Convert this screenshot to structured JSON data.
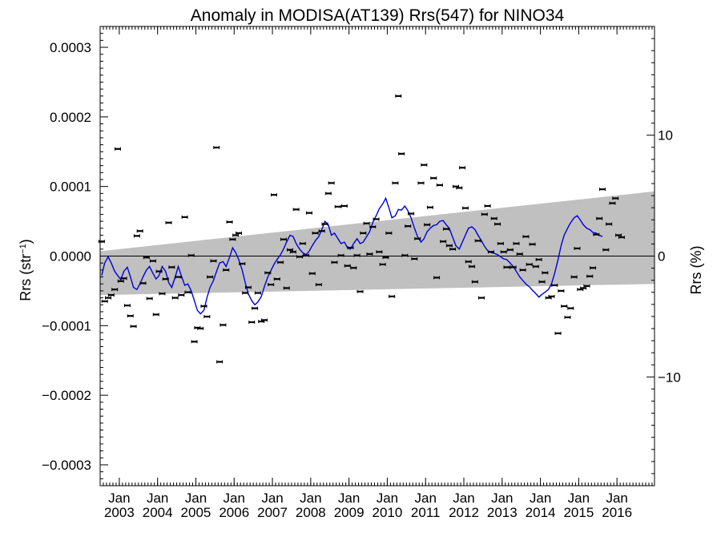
{
  "chart_data": {
    "type": "scatter",
    "title": "Anomaly in MODISA(AT139) Rrs(547) for NINO34",
    "ylabel_base": "Rrs (str",
    "ylabel_sup": "−1",
    "ylabel_end": ")",
    "y2label": "Rrs (%)",
    "ylim": [
      -0.00033,
      0.00033
    ],
    "y2lim": [
      -19,
      19
    ],
    "xlim": [
      2002.5,
      2016.98
    ],
    "x_ticks": [
      {
        "x": 2003.0,
        "top": "Jan",
        "bottom": "2003"
      },
      {
        "x": 2004.0,
        "top": "Jan",
        "bottom": "2004"
      },
      {
        "x": 2005.0,
        "top": "Jan",
        "bottom": "2005"
      },
      {
        "x": 2006.0,
        "top": "Jan",
        "bottom": "2006"
      },
      {
        "x": 2007.0,
        "top": "Jan",
        "bottom": "2007"
      },
      {
        "x": 2008.0,
        "top": "Jan",
        "bottom": "2008"
      },
      {
        "x": 2009.0,
        "top": "Jan",
        "bottom": "2009"
      },
      {
        "x": 2010.0,
        "top": "Jan",
        "bottom": "2010"
      },
      {
        "x": 2011.0,
        "top": "Jan",
        "bottom": "2011"
      },
      {
        "x": 2012.0,
        "top": "Jan",
        "bottom": "2012"
      },
      {
        "x": 2013.0,
        "top": "Jan",
        "bottom": "2013"
      },
      {
        "x": 2014.0,
        "top": "Jan",
        "bottom": "2014"
      },
      {
        "x": 2015.0,
        "top": "Jan",
        "bottom": "2015"
      },
      {
        "x": 2016.0,
        "top": "Jan",
        "bottom": "2016"
      }
    ],
    "y_ticks": [
      {
        "v": 0.0003,
        "label": "0.0003"
      },
      {
        "v": 0.0002,
        "label": "0.0002"
      },
      {
        "v": 0.0001,
        "label": "0.0001"
      },
      {
        "v": 0.0,
        "label": "0.0000"
      },
      {
        "v": -0.0001,
        "label": "−0.0001"
      },
      {
        "v": -0.0002,
        "label": "−0.0002"
      },
      {
        "v": -0.0003,
        "label": "−0.0003"
      }
    ],
    "y2_ticks": [
      {
        "v": 10,
        "label": "10"
      },
      {
        "v": 0,
        "label": "0"
      },
      {
        "v": -10,
        "label": "−10"
      }
    ],
    "band": {
      "x": [
        2002.5,
        2016.98
      ],
      "upper": [
        7e-06,
        9.3e-05
      ],
      "lower": [
        -5.6e-05,
        -4e-05
      ]
    },
    "colors": {
      "points": "#000000",
      "line": "#0000dd",
      "band": "#c0c0c0"
    },
    "points": [
      [
        2002.54,
        2.1e-05
      ],
      [
        2002.62,
        -6.5e-05
      ],
      [
        2002.71,
        -6e-05
      ],
      [
        2002.79,
        -5.6e-05
      ],
      [
        2002.88,
        -4.8e-05
      ],
      [
        2002.96,
        0.000154
      ],
      [
        2003.04,
        -3.6e-05
      ],
      [
        2003.12,
        -3.2e-05
      ],
      [
        2003.21,
        -7.1e-05
      ],
      [
        2003.29,
        -8.6e-05
      ],
      [
        2003.37,
        -0.000101
      ],
      [
        2003.46,
        2.9e-05
      ],
      [
        2003.54,
        3.6e-05
      ],
      [
        2003.62,
        -3.9e-05
      ],
      [
        2003.71,
        -2e-06
      ],
      [
        2003.79,
        -6.1e-05
      ],
      [
        2003.88,
        -7e-06
      ],
      [
        2003.96,
        -8.4e-05
      ],
      [
        2004.04,
        -2.2e-05
      ],
      [
        2004.12,
        -5.4e-05
      ],
      [
        2004.21,
        -3.3e-05
      ],
      [
        2004.29,
        4.8e-05
      ],
      [
        2004.37,
        -1.6e-05
      ],
      [
        2004.46,
        -6e-05
      ],
      [
        2004.54,
        -3e-05
      ],
      [
        2004.62,
        -5.6e-05
      ],
      [
        2004.71,
        5.6e-05
      ],
      [
        2004.79,
        -5.2e-05
      ],
      [
        2004.88,
        1e-06
      ],
      [
        2004.96,
        -0.000123
      ],
      [
        2005.04,
        -0.000103
      ],
      [
        2005.12,
        -0.000104
      ],
      [
        2005.21,
        -7.2e-05
      ],
      [
        2005.29,
        -8.7e-05
      ],
      [
        2005.37,
        -3e-05
      ],
      [
        2005.46,
        -7e-06
      ],
      [
        2005.54,
        0.000156
      ],
      [
        2005.62,
        -0.000152
      ],
      [
        2005.71,
        -9.9e-05
      ],
      [
        2005.79,
        -2e-05
      ],
      [
        2005.88,
        4.9e-05
      ],
      [
        2005.96,
        2.4e-05
      ],
      [
        2006.04,
        3e-05
      ],
      [
        2006.12,
        3.3e-05
      ],
      [
        2006.21,
        -1.1e-05
      ],
      [
        2006.29,
        -5.3e-05
      ],
      [
        2006.37,
        -4.5e-05
      ],
      [
        2006.46,
        -9.5e-05
      ],
      [
        2006.54,
        -7.5e-05
      ],
      [
        2006.62,
        -5.3e-05
      ],
      [
        2006.71,
        -9.4e-05
      ],
      [
        2006.79,
        -9.2e-05
      ],
      [
        2006.88,
        -2.4e-05
      ],
      [
        2006.96,
        -4.1e-05
      ],
      [
        2007.04,
        8.8e-05
      ],
      [
        2007.12,
        -3.3e-05
      ],
      [
        2007.21,
        -9e-06
      ],
      [
        2007.29,
        2.4e-05
      ],
      [
        2007.37,
        -4.6e-05
      ],
      [
        2007.46,
        9e-06
      ],
      [
        2007.54,
        6e-06
      ],
      [
        2007.62,
        6.7e-05
      ],
      [
        2007.71,
        -1e-06
      ],
      [
        2007.79,
        1.8e-05
      ],
      [
        2007.88,
        1e-06
      ],
      [
        2007.96,
        6.2e-05
      ],
      [
        2008.04,
        -2.5e-05
      ],
      [
        2008.12,
        3.3e-05
      ],
      [
        2008.21,
        -4.1e-05
      ],
      [
        2008.29,
        3.6e-05
      ],
      [
        2008.37,
        4.6e-05
      ],
      [
        2008.46,
        9e-05
      ],
      [
        2008.54,
        0.000105
      ],
      [
        2008.62,
        -9e-06
      ],
      [
        2008.71,
        7.1e-05
      ],
      [
        2008.79,
        1e-06
      ],
      [
        2008.88,
        7.2e-05
      ],
      [
        2008.96,
        -1.4e-05
      ],
      [
        2009.04,
        1.2e-05
      ],
      [
        2009.12,
        -1.7e-05
      ],
      [
        2009.21,
        1e-06
      ],
      [
        2009.29,
        -5.1e-05
      ],
      [
        2009.37,
        3.3e-05
      ],
      [
        2009.46,
        4.7e-05
      ],
      [
        2009.54,
        3e-06
      ],
      [
        2009.62,
        4.2e-05
      ],
      [
        2009.71,
        5.3e-05
      ],
      [
        2009.79,
        6e-06
      ],
      [
        2009.88,
        -1.2e-05
      ],
      [
        2009.96,
        -2e-06
      ],
      [
        2010.04,
        3.3e-05
      ],
      [
        2010.12,
        -5.8e-05
      ],
      [
        2010.21,
        0.000105
      ],
      [
        2010.29,
        0.00023
      ],
      [
        2010.37,
        0.000147
      ],
      [
        2010.46,
        1e-06
      ],
      [
        2010.54,
        4.3e-05
      ],
      [
        2010.62,
        6.1e-05
      ],
      [
        2010.71,
        -4e-06
      ],
      [
        2010.79,
        2.5e-05
      ],
      [
        2010.88,
        0.000105
      ],
      [
        2010.96,
        0.000131
      ],
      [
        2011.04,
        4.5e-05
      ],
      [
        2011.12,
        7e-05
      ],
      [
        2011.21,
        0.000112
      ],
      [
        2011.29,
        -3.1e-05
      ],
      [
        2011.37,
        0.000102
      ],
      [
        2011.46,
        2.1e-05
      ],
      [
        2011.54,
        3.9e-05
      ],
      [
        2011.62,
        1.5e-05
      ],
      [
        2011.71,
        1e-05
      ],
      [
        2011.79,
        0.0001
      ],
      [
        2011.88,
        9.8e-05
      ],
      [
        2011.96,
        0.000127
      ],
      [
        2012.04,
        6.9e-05
      ],
      [
        2012.12,
        -8e-06
      ],
      [
        2012.21,
        -1.5e-05
      ],
      [
        2012.29,
        -3.7e-05
      ],
      [
        2012.37,
        2.2e-05
      ],
      [
        2012.46,
        -6e-05
      ],
      [
        2012.54,
        6e-05
      ],
      [
        2012.62,
        7.2e-05
      ],
      [
        2012.71,
        6e-06
      ],
      [
        2012.79,
        5.4e-05
      ],
      [
        2012.88,
        4.6e-05
      ],
      [
        2012.96,
        1.8e-05
      ],
      [
        2013.04,
        6e-06
      ],
      [
        2013.12,
        -1.6e-05
      ],
      [
        2013.21,
        9e-06
      ],
      [
        2013.29,
        -1.6e-05
      ],
      [
        2013.37,
        1.8e-05
      ],
      [
        2013.46,
        3e-06
      ],
      [
        2013.54,
        -2e-05
      ],
      [
        2013.62,
        2.8e-05
      ],
      [
        2013.71,
        -1.2e-05
      ],
      [
        2013.79,
        1.7e-05
      ],
      [
        2013.88,
        -1.5e-05
      ],
      [
        2013.96,
        -5e-06
      ],
      [
        2014.04,
        -3.7e-05
      ],
      [
        2014.12,
        -2.4e-05
      ],
      [
        2014.21,
        -6e-05
      ],
      [
        2014.29,
        -5.8e-05
      ],
      [
        2014.37,
        -4.2e-05
      ],
      [
        2014.46,
        -0.000111
      ],
      [
        2014.54,
        -5e-05
      ],
      [
        2014.62,
        -7.2e-05
      ],
      [
        2014.71,
        -8.8e-05
      ],
      [
        2014.79,
        -7.5e-05
      ],
      [
        2014.88,
        -3e-05
      ],
      [
        2014.96,
        1.1e-05
      ],
      [
        2015.04,
        -4.8e-05
      ],
      [
        2015.12,
        -4.6e-05
      ],
      [
        2015.21,
        -4.3e-05
      ],
      [
        2015.29,
        -2.9e-05
      ],
      [
        2015.37,
        -1.7e-05
      ],
      [
        2015.46,
        3.1e-05
      ],
      [
        2015.54,
        5.4e-05
      ],
      [
        2015.62,
        9.6e-05
      ],
      [
        2015.71,
        9e-06
      ],
      [
        2015.79,
        4.6e-05
      ],
      [
        2015.88,
        7.6e-05
      ],
      [
        2015.96,
        8.3e-05
      ],
      [
        2016.04,
        3e-05
      ],
      [
        2016.12,
        2.7e-05
      ]
    ],
    "line": [
      [
        2002.54,
        -2.8e-05
      ],
      [
        2002.62,
        -1e-05
      ],
      [
        2002.71,
        -1e-06
      ],
      [
        2002.79,
        -1e-05
      ],
      [
        2002.88,
        -2.2e-05
      ],
      [
        2002.96,
        -2.8e-05
      ],
      [
        2003.04,
        -3.4e-05
      ],
      [
        2003.12,
        -2.2e-05
      ],
      [
        2003.21,
        -1.6e-05
      ],
      [
        2003.29,
        -3e-05
      ],
      [
        2003.37,
        -4.5e-05
      ],
      [
        2003.46,
        -4.8e-05
      ],
      [
        2003.54,
        -4e-05
      ],
      [
        2003.62,
        -3e-05
      ],
      [
        2003.71,
        -2e-05
      ],
      [
        2003.79,
        -1.5e-05
      ],
      [
        2003.88,
        -2.5e-05
      ],
      [
        2003.96,
        -3.3e-05
      ],
      [
        2004.04,
        -2.8e-05
      ],
      [
        2004.12,
        -1.5e-05
      ],
      [
        2004.21,
        -2.2e-05
      ],
      [
        2004.29,
        -3.8e-05
      ],
      [
        2004.37,
        -4.5e-05
      ],
      [
        2004.46,
        -3e-05
      ],
      [
        2004.54,
        -1.5e-05
      ],
      [
        2004.62,
        -2.8e-05
      ],
      [
        2004.71,
        -4.2e-05
      ],
      [
        2004.79,
        -4e-05
      ],
      [
        2004.88,
        -5e-05
      ],
      [
        2004.96,
        -6.4e-05
      ],
      [
        2005.04,
        -7.8e-05
      ],
      [
        2005.12,
        -8.3e-05
      ],
      [
        2005.21,
        -7.8e-05
      ],
      [
        2005.29,
        -6e-05
      ],
      [
        2005.37,
        -4.5e-05
      ],
      [
        2005.46,
        -3.5e-05
      ],
      [
        2005.54,
        -2.2e-05
      ],
      [
        2005.62,
        -1e-05
      ],
      [
        2005.71,
        -8e-06
      ],
      [
        2005.79,
        -1.5e-05
      ],
      [
        2005.88,
        -2e-06
      ],
      [
        2005.96,
        1.2e-05
      ],
      [
        2006.04,
        5e-06
      ],
      [
        2006.12,
        -5e-06
      ],
      [
        2006.21,
        -2e-05
      ],
      [
        2006.29,
        -3.8e-05
      ],
      [
        2006.37,
        -5.4e-05
      ],
      [
        2006.46,
        -6.4e-05
      ],
      [
        2006.54,
        -7e-05
      ],
      [
        2006.62,
        -6.6e-05
      ],
      [
        2006.71,
        -5.8e-05
      ],
      [
        2006.79,
        -4.4e-05
      ],
      [
        2006.88,
        -3e-05
      ],
      [
        2006.96,
        -2.1e-05
      ],
      [
        2007.04,
        -1.2e-05
      ],
      [
        2007.12,
        -5e-06
      ],
      [
        2007.21,
        2e-06
      ],
      [
        2007.29,
        1e-05
      ],
      [
        2007.37,
        2e-05
      ],
      [
        2007.46,
        3e-05
      ],
      [
        2007.54,
        2.8e-05
      ],
      [
        2007.62,
        1.8e-05
      ],
      [
        2007.71,
        1e-05
      ],
      [
        2007.79,
        5e-06
      ],
      [
        2007.88,
        2e-06
      ],
      [
        2007.96,
        7e-06
      ],
      [
        2008.04,
        1.5e-05
      ],
      [
        2008.12,
        2.2e-05
      ],
      [
        2008.21,
        2.8e-05
      ],
      [
        2008.29,
        3.8e-05
      ],
      [
        2008.37,
        5e-05
      ],
      [
        2008.46,
        4.5e-05
      ],
      [
        2008.54,
        3e-05
      ],
      [
        2008.62,
        3.3e-05
      ],
      [
        2008.71,
        2.5e-05
      ],
      [
        2008.79,
        1.8e-05
      ],
      [
        2008.88,
        2e-05
      ],
      [
        2008.96,
        1.2e-05
      ],
      [
        2009.04,
        1e-05
      ],
      [
        2009.12,
        1.8e-05
      ],
      [
        2009.21,
        2.5e-05
      ],
      [
        2009.29,
        1.8e-05
      ],
      [
        2009.37,
        2e-05
      ],
      [
        2009.46,
        2.8e-05
      ],
      [
        2009.54,
        3.5e-05
      ],
      [
        2009.62,
        4.8e-05
      ],
      [
        2009.71,
        5.8e-05
      ],
      [
        2009.79,
        6.8e-05
      ],
      [
        2009.88,
        7.5e-05
      ],
      [
        2009.96,
        8.3e-05
      ],
      [
        2010.04,
        7e-05
      ],
      [
        2010.12,
        5.5e-05
      ],
      [
        2010.21,
        5.8e-05
      ],
      [
        2010.29,
        6.7e-05
      ],
      [
        2010.37,
        6.6e-05
      ],
      [
        2010.46,
        7.2e-05
      ],
      [
        2010.54,
        6.5e-05
      ],
      [
        2010.62,
        5.5e-05
      ],
      [
        2010.71,
        4e-05
      ],
      [
        2010.79,
        2.8e-05
      ],
      [
        2010.88,
        2e-05
      ],
      [
        2010.96,
        2.5e-05
      ],
      [
        2011.04,
        3.5e-05
      ],
      [
        2011.12,
        4e-05
      ],
      [
        2011.21,
        4.4e-05
      ],
      [
        2011.29,
        4.5e-05
      ],
      [
        2011.37,
        5e-05
      ],
      [
        2011.46,
        5.1e-05
      ],
      [
        2011.54,
        4.5e-05
      ],
      [
        2011.62,
        4e-05
      ],
      [
        2011.71,
        2.7e-05
      ],
      [
        2011.79,
        1.5e-05
      ],
      [
        2011.88,
        1e-05
      ],
      [
        2011.96,
        2e-05
      ],
      [
        2012.04,
        3e-05
      ],
      [
        2012.12,
        4e-05
      ],
      [
        2012.21,
        4.2e-05
      ],
      [
        2012.29,
        3.8e-05
      ],
      [
        2012.37,
        3e-05
      ],
      [
        2012.46,
        2.2e-05
      ],
      [
        2012.54,
        1.4e-05
      ],
      [
        2012.62,
        8e-06
      ],
      [
        2012.71,
        5e-06
      ],
      [
        2012.79,
        4e-06
      ],
      [
        2012.88,
        2e-06
      ],
      [
        2012.96,
        -1e-06
      ],
      [
        2013.04,
        -4e-06
      ],
      [
        2013.12,
        -5e-06
      ],
      [
        2013.21,
        -1e-05
      ],
      [
        2013.29,
        -1.5e-05
      ],
      [
        2013.37,
        -2.2e-05
      ],
      [
        2013.46,
        -3e-05
      ],
      [
        2013.54,
        -3.5e-05
      ],
      [
        2013.62,
        -4e-05
      ],
      [
        2013.71,
        -4.4e-05
      ],
      [
        2013.79,
        -4.9e-05
      ],
      [
        2013.88,
        -5.4e-05
      ],
      [
        2013.96,
        -5.9e-05
      ],
      [
        2014.04,
        -5.5e-05
      ],
      [
        2014.12,
        -5.2e-05
      ],
      [
        2014.21,
        -4.8e-05
      ],
      [
        2014.29,
        -4e-05
      ],
      [
        2014.37,
        -2.5e-05
      ],
      [
        2014.46,
        -5e-06
      ],
      [
        2014.54,
        1.5e-05
      ],
      [
        2014.62,
        3e-05
      ],
      [
        2014.71,
        4e-05
      ],
      [
        2014.79,
        4.8e-05
      ],
      [
        2014.88,
        5.5e-05
      ],
      [
        2014.96,
        5.8e-05
      ],
      [
        2015.04,
        5.2e-05
      ],
      [
        2015.12,
        4.5e-05
      ],
      [
        2015.21,
        4e-05
      ],
      [
        2015.29,
        3.8e-05
      ],
      [
        2015.37,
        3.4e-05
      ],
      [
        2015.46,
        3.3e-05
      ],
      [
        2015.54,
        3e-05
      ],
      [
        2015.62,
        2.8e-05
      ]
    ]
  }
}
